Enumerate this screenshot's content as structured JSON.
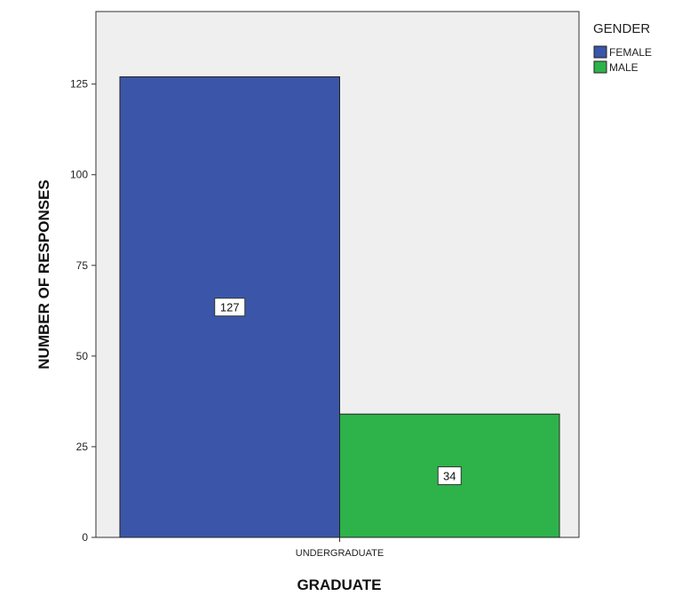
{
  "chart_data": {
    "type": "bar",
    "xlabel": "GRADUATE",
    "ylabel": "NUMBER OF RESPONSES",
    "categories": [
      "UNDERGRADUATE"
    ],
    "ylim": [
      0,
      145
    ],
    "yticks": [
      0,
      25,
      50,
      75,
      100,
      125
    ],
    "legend": {
      "title": "GENDER",
      "placement": "top-right"
    },
    "grid": false,
    "series": [
      {
        "name": "FEMALE",
        "color": "#3b56a8",
        "values": [
          127
        ],
        "label": "127"
      },
      {
        "name": "MALE",
        "color": "#2db34a",
        "values": [
          34
        ],
        "label": "34"
      }
    ]
  }
}
